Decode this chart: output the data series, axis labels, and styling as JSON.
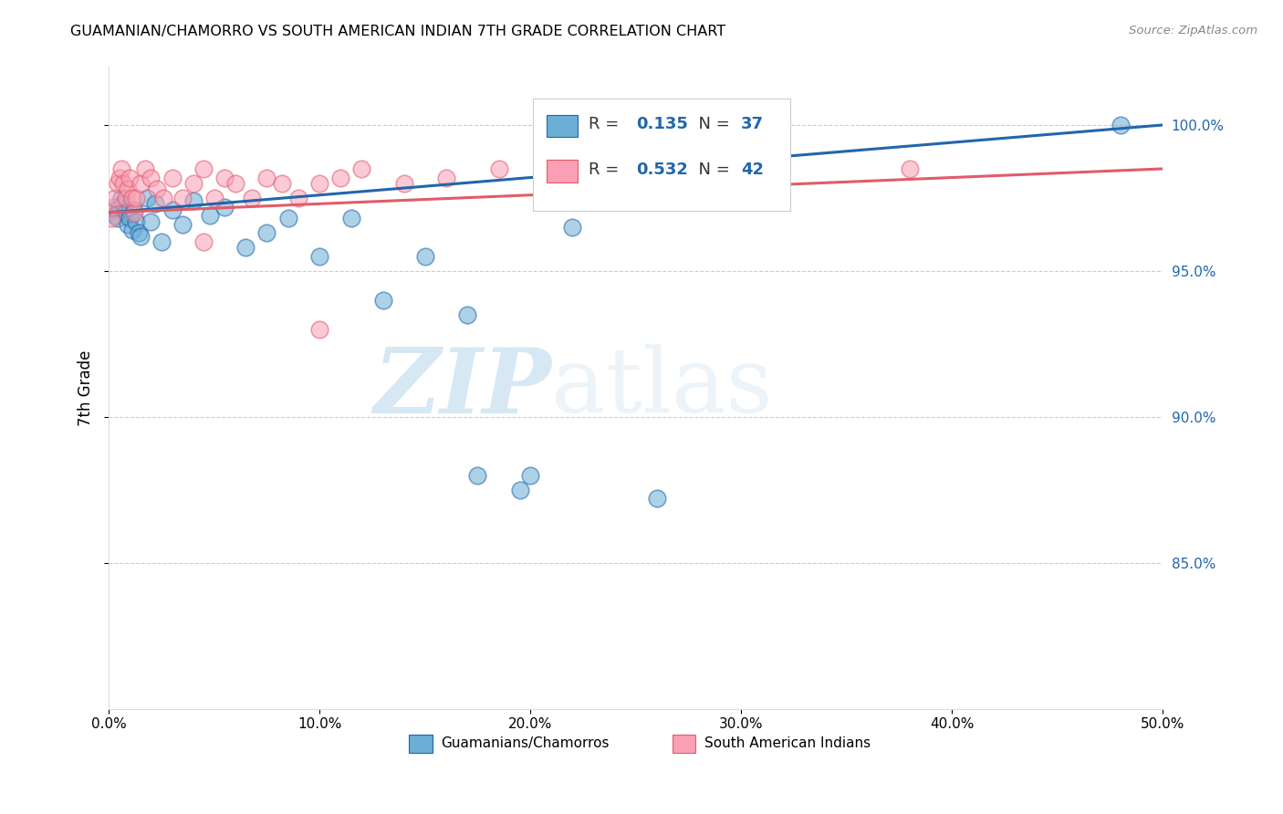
{
  "title": "GUAMANIAN/CHAMORRO VS SOUTH AMERICAN INDIAN 7TH GRADE CORRELATION CHART",
  "source": "Source: ZipAtlas.com",
  "ylabel": "7th Grade",
  "xlabel_legend1": "Guamanians/Chamorros",
  "xlabel_legend2": "South American Indians",
  "R_blue": 0.135,
  "N_blue": 37,
  "R_pink": 0.532,
  "N_pink": 42,
  "xmin": 0.0,
  "xmax": 0.5,
  "ymin": 0.8,
  "ymax": 1.02,
  "color_blue": "#6baed6",
  "color_pink": "#fa9fb5",
  "color_blue_line": "#2166ac",
  "color_pink_line": "#e05c6a",
  "watermark_zip": "ZIP",
  "watermark_atlas": "atlas",
  "grid_color": "#cccccc",
  "blue_x": [
    0.002,
    0.003,
    0.004,
    0.005,
    0.006,
    0.007,
    0.008,
    0.009,
    0.01,
    0.011,
    0.012,
    0.013,
    0.014,
    0.015,
    0.018,
    0.02,
    0.022,
    0.025,
    0.03,
    0.035,
    0.04,
    0.048,
    0.055,
    0.065,
    0.075,
    0.085,
    0.1,
    0.115,
    0.13,
    0.15,
    0.175,
    0.195,
    0.22,
    0.26,
    0.48,
    0.17,
    0.2
  ],
  "blue_y": [
    0.971,
    0.969,
    0.968,
    0.972,
    0.975,
    0.973,
    0.97,
    0.966,
    0.968,
    0.964,
    0.971,
    0.967,
    0.963,
    0.962,
    0.975,
    0.967,
    0.973,
    0.96,
    0.971,
    0.966,
    0.974,
    0.969,
    0.972,
    0.958,
    0.963,
    0.968,
    0.955,
    0.968,
    0.94,
    0.955,
    0.88,
    0.875,
    0.965,
    0.872,
    1.0,
    0.935,
    0.88
  ],
  "pink_x": [
    0.001,
    0.002,
    0.003,
    0.004,
    0.005,
    0.006,
    0.007,
    0.008,
    0.009,
    0.01,
    0.011,
    0.012,
    0.013,
    0.015,
    0.017,
    0.02,
    0.023,
    0.026,
    0.03,
    0.035,
    0.04,
    0.045,
    0.05,
    0.055,
    0.06,
    0.068,
    0.075,
    0.082,
    0.09,
    0.1,
    0.11,
    0.12,
    0.14,
    0.16,
    0.185,
    0.21,
    0.24,
    0.27,
    0.31,
    0.38,
    0.1,
    0.045
  ],
  "pink_y": [
    0.968,
    0.972,
    0.975,
    0.98,
    0.982,
    0.985,
    0.98,
    0.975,
    0.978,
    0.982,
    0.975,
    0.97,
    0.975,
    0.98,
    0.985,
    0.982,
    0.978,
    0.975,
    0.982,
    0.975,
    0.98,
    0.985,
    0.975,
    0.982,
    0.98,
    0.975,
    0.982,
    0.98,
    0.975,
    0.98,
    0.982,
    0.985,
    0.98,
    0.982,
    0.985,
    0.982,
    0.985,
    0.982,
    0.975,
    0.985,
    0.93,
    0.96
  ]
}
